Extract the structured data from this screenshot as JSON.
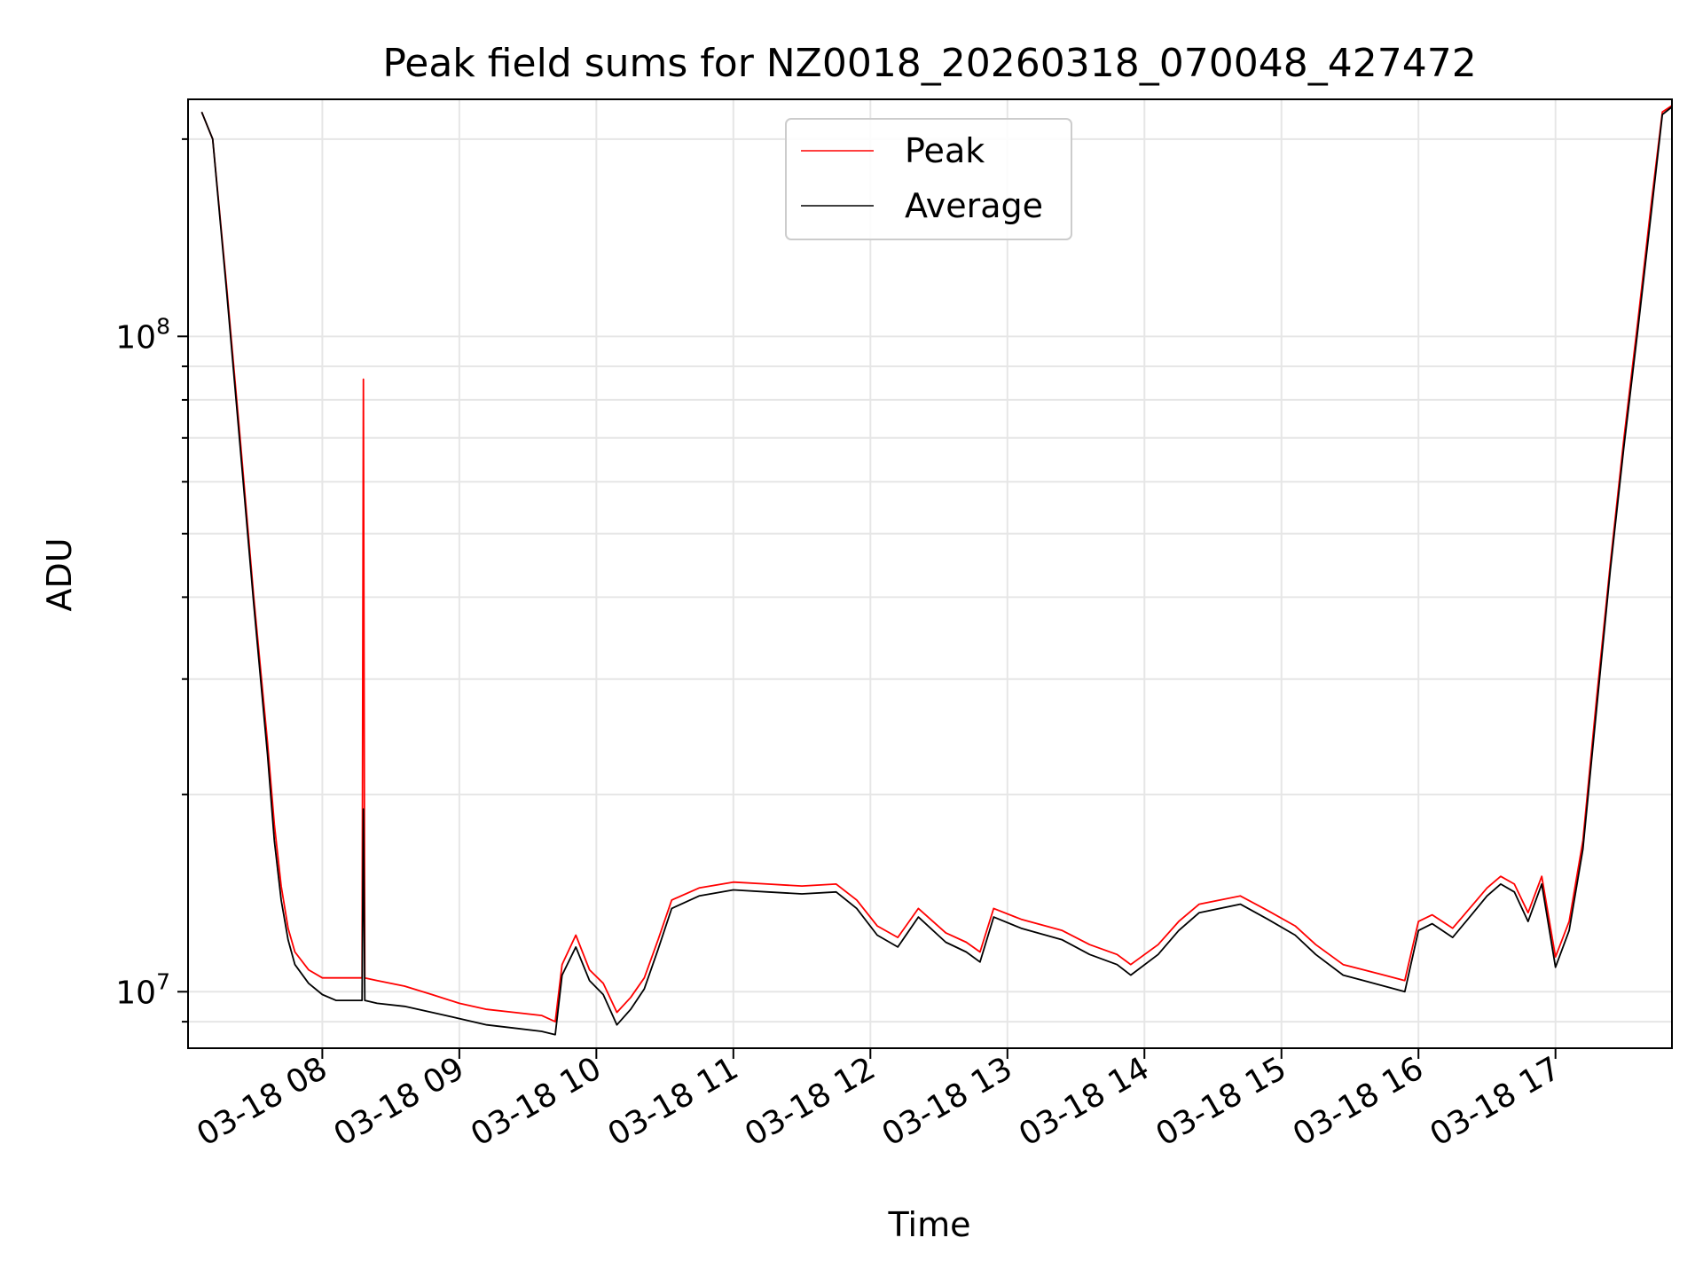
{
  "chart_data": {
    "type": "line",
    "title": "Peak field sums for NZ0018_20260318_070048_427472",
    "xlabel": "Time",
    "ylabel": "ADU",
    "yscale": "log",
    "ylim": [
      8200000,
      230000000
    ],
    "xlim_hours": [
      7.02,
      17.85
    ],
    "grid": true,
    "legend_position": "upper center",
    "x_ticks": [
      {
        "hour": 8,
        "label": "03-18 08"
      },
      {
        "hour": 9,
        "label": "03-18 09"
      },
      {
        "hour": 10,
        "label": "03-18 10"
      },
      {
        "hour": 11,
        "label": "03-18 11"
      },
      {
        "hour": 12,
        "label": "03-18 12"
      },
      {
        "hour": 13,
        "label": "03-18 13"
      },
      {
        "hour": 14,
        "label": "03-18 14"
      },
      {
        "hour": 15,
        "label": "03-18 15"
      },
      {
        "hour": 16,
        "label": "03-18 16"
      },
      {
        "hour": 17,
        "label": "03-18 17"
      }
    ],
    "y_major_ticks": [
      {
        "value": 10000000,
        "base": "10",
        "exp": "7"
      },
      {
        "value": 100000000,
        "base": "10",
        "exp": "8"
      }
    ],
    "y_minor_ticks": [
      9000000,
      20000000,
      30000000,
      40000000,
      50000000,
      60000000,
      70000000,
      80000000,
      90000000,
      200000000
    ],
    "series": [
      {
        "name": "Peak",
        "color": "#ff0000",
        "hours": [
          7.12,
          7.2,
          7.3,
          7.4,
          7.5,
          7.6,
          7.65,
          7.7,
          7.75,
          7.8,
          7.9,
          8.0,
          8.1,
          8.29,
          8.3,
          8.31,
          8.4,
          8.6,
          8.8,
          9.0,
          9.2,
          9.4,
          9.6,
          9.7,
          9.75,
          9.85,
          9.95,
          10.05,
          10.15,
          10.25,
          10.35,
          10.45,
          10.55,
          10.75,
          11.0,
          11.25,
          11.5,
          11.75,
          11.9,
          12.05,
          12.2,
          12.35,
          12.55,
          12.7,
          12.8,
          12.9,
          13.1,
          13.4,
          13.6,
          13.8,
          13.9,
          14.1,
          14.25,
          14.4,
          14.7,
          14.9,
          15.1,
          15.25,
          15.45,
          15.6,
          15.75,
          15.9,
          16.0,
          16.1,
          16.25,
          16.4,
          16.5,
          16.6,
          16.7,
          16.8,
          16.9,
          17.0,
          17.1,
          17.2,
          17.3,
          17.4,
          17.5,
          17.6,
          17.7,
          17.78,
          17.85
        ],
        "values": [
          220000000,
          200000000,
          120000000,
          70000000,
          40000000,
          24000000,
          18000000,
          14500000,
          12500000,
          11500000,
          10800000,
          10500000,
          10500000,
          10500000,
          86000000,
          10500000,
          10400000,
          10200000,
          9900000,
          9600000,
          9400000,
          9300000,
          9200000,
          9000000,
          11000000,
          12200000,
          10800000,
          10300000,
          9300000,
          9800000,
          10500000,
          12000000,
          13800000,
          14400000,
          14700000,
          14600000,
          14500000,
          14600000,
          13800000,
          12600000,
          12100000,
          13400000,
          12300000,
          11900000,
          11500000,
          13400000,
          12900000,
          12400000,
          11800000,
          11400000,
          11000000,
          11800000,
          12800000,
          13600000,
          14000000,
          13300000,
          12600000,
          11800000,
          11000000,
          10800000,
          10600000,
          10400000,
          12800000,
          13100000,
          12500000,
          13600000,
          14400000,
          15000000,
          14600000,
          13200000,
          15000000,
          11300000,
          12800000,
          17000000,
          28000000,
          45000000,
          70000000,
          105000000,
          160000000,
          220000000,
          225000000
        ]
      },
      {
        "name": "Average",
        "color": "#000000",
        "hours": [
          7.12,
          7.2,
          7.3,
          7.4,
          7.5,
          7.6,
          7.65,
          7.7,
          7.75,
          7.8,
          7.9,
          8.0,
          8.1,
          8.29,
          8.3,
          8.31,
          8.4,
          8.6,
          8.8,
          9.0,
          9.2,
          9.4,
          9.6,
          9.7,
          9.75,
          9.85,
          9.95,
          10.05,
          10.15,
          10.25,
          10.35,
          10.45,
          10.55,
          10.75,
          11.0,
          11.25,
          11.5,
          11.75,
          11.9,
          12.05,
          12.2,
          12.35,
          12.55,
          12.7,
          12.8,
          12.9,
          13.1,
          13.4,
          13.6,
          13.8,
          13.9,
          14.1,
          14.25,
          14.4,
          14.7,
          14.9,
          15.1,
          15.25,
          15.45,
          15.6,
          15.75,
          15.9,
          16.0,
          16.1,
          16.25,
          16.4,
          16.5,
          16.6,
          16.7,
          16.8,
          16.9,
          17.0,
          17.1,
          17.2,
          17.3,
          17.4,
          17.5,
          17.6,
          17.7,
          17.78,
          17.85
        ],
        "values": [
          220000000,
          200000000,
          118000000,
          68000000,
          39000000,
          23000000,
          17000000,
          13800000,
          12000000,
          11000000,
          10300000,
          9900000,
          9700000,
          9700000,
          19000000,
          9700000,
          9600000,
          9500000,
          9300000,
          9100000,
          8900000,
          8800000,
          8700000,
          8600000,
          10600000,
          11700000,
          10400000,
          9900000,
          8900000,
          9400000,
          10100000,
          11600000,
          13400000,
          14000000,
          14300000,
          14200000,
          14100000,
          14200000,
          13400000,
          12200000,
          11700000,
          13000000,
          11900000,
          11500000,
          11100000,
          13000000,
          12500000,
          12000000,
          11400000,
          11000000,
          10600000,
          11400000,
          12400000,
          13200000,
          13600000,
          12900000,
          12200000,
          11400000,
          10600000,
          10400000,
          10200000,
          10000000,
          12400000,
          12700000,
          12100000,
          13200000,
          14000000,
          14600000,
          14200000,
          12800000,
          14600000,
          10900000,
          12400000,
          16500000,
          27000000,
          44000000,
          68000000,
          102000000,
          155000000,
          218000000,
          224000000
        ]
      }
    ]
  }
}
